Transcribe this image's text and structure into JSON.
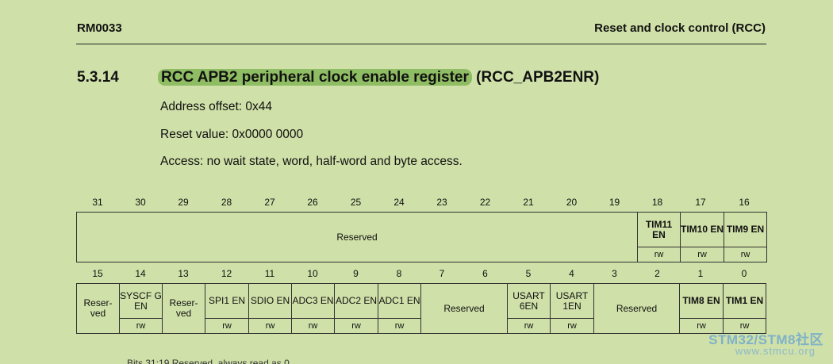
{
  "header": {
    "doc_id": "RM0033",
    "chapter": "Reset and clock control (RCC)"
  },
  "section": {
    "number": "5.3.14",
    "title_highlight": "RCC APB2 peripheral clock enable register",
    "title_suffix": "(RCC_APB2ENR)"
  },
  "info": {
    "address_offset": "Address offset: 0x44",
    "reset_value": "Reset value: 0x0000 0000",
    "access": "Access: no wait state, word, half-word and byte access."
  },
  "upper_bits": [
    "31",
    "30",
    "29",
    "28",
    "27",
    "26",
    "25",
    "24",
    "23",
    "22",
    "21",
    "20",
    "19",
    "18",
    "17",
    "16"
  ],
  "lower_bits": [
    "15",
    "14",
    "13",
    "12",
    "11",
    "10",
    "9",
    "8",
    "7",
    "6",
    "5",
    "4",
    "3",
    "2",
    "1",
    "0"
  ],
  "upper_fields": {
    "reserved": "Reserved",
    "tim11": "TIM11 EN",
    "tim10": "TIM10 EN",
    "tim9": "TIM9 EN"
  },
  "lower_fields": {
    "b15": "Reser- ved",
    "b14": "SYSCF G EN",
    "b13": "Reser- ved",
    "b12": "SPI1 EN",
    "b11": "SDIO EN",
    "b10": "ADC3 EN",
    "b9": "ADC2 EN",
    "b8": "ADC1 EN",
    "b7_6": "Reserved",
    "b5": "USART 6EN",
    "b4": "USART 1EN",
    "b3_2": "Reserved",
    "b1": "TIM8 EN",
    "b0": "TIM1 EN"
  },
  "access_label": "rw",
  "watermark": {
    "brand": "STM32/STM8社区",
    "url": "www.stmcu.org"
  },
  "footer_cut": "Bits 31:19    Reserved, always read as 0."
}
